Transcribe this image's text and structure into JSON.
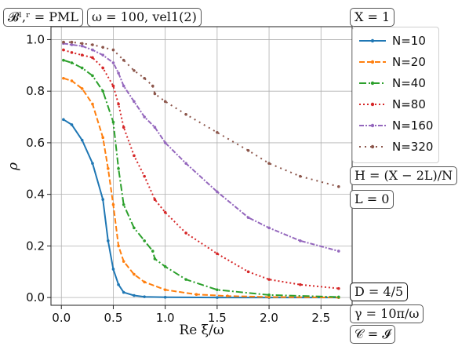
{
  "tags": {
    "boundary": "𝓑ˡ,ʳ = PML",
    "omega": "ω = 100, vel1(2)",
    "X": "X = 1",
    "H": "H = (X − 2L)/N",
    "L": "L = 0",
    "D": "D = 4/5",
    "gamma": "γ = 10π/ω",
    "C": "𝒞 = 𝓘"
  },
  "chart_data": {
    "type": "line",
    "xlabel": "Re ξ/ω",
    "ylabel": "ρ",
    "xlim": [
      -0.1,
      2.8
    ],
    "ylim": [
      -0.03,
      1.05
    ],
    "xticks": [
      "0.0",
      "0.5",
      "1.0",
      "1.5",
      "2.0",
      "2.5"
    ],
    "yticks": [
      "0.0",
      "0.2",
      "0.4",
      "0.6",
      "0.8",
      "1.0"
    ],
    "grid": true,
    "legend_position": "right",
    "series": [
      {
        "name": "N=10",
        "color": "#1f77b4",
        "dash": "",
        "x": [
          0.02,
          0.1,
          0.2,
          0.3,
          0.4,
          0.45,
          0.5,
          0.55,
          0.6,
          0.7,
          0.8,
          1.0,
          1.5,
          2.0,
          2.67
        ],
        "y": [
          0.69,
          0.67,
          0.61,
          0.52,
          0.38,
          0.22,
          0.11,
          0.05,
          0.02,
          0.008,
          0.003,
          0.001,
          0.0,
          0.0,
          0.0
        ]
      },
      {
        "name": "N=20",
        "color": "#ff7f0e",
        "dash": "7,3",
        "x": [
          0.02,
          0.1,
          0.2,
          0.3,
          0.4,
          0.45,
          0.5,
          0.55,
          0.6,
          0.7,
          0.8,
          1.0,
          1.3,
          1.6,
          2.0,
          2.67
        ],
        "y": [
          0.85,
          0.84,
          0.81,
          0.75,
          0.62,
          0.5,
          0.36,
          0.2,
          0.14,
          0.09,
          0.06,
          0.03,
          0.012,
          0.006,
          0.002,
          0.0
        ]
      },
      {
        "name": "N=40",
        "color": "#2ca02c",
        "dash": "9,3,2,3",
        "x": [
          0.02,
          0.1,
          0.2,
          0.3,
          0.4,
          0.5,
          0.55,
          0.6,
          0.7,
          0.8,
          0.88,
          0.9,
          1.0,
          1.2,
          1.5,
          2.0,
          2.67
        ],
        "y": [
          0.92,
          0.91,
          0.89,
          0.86,
          0.8,
          0.68,
          0.5,
          0.36,
          0.27,
          0.22,
          0.18,
          0.15,
          0.12,
          0.07,
          0.03,
          0.01,
          0.002
        ]
      },
      {
        "name": "N=80",
        "color": "#d62728",
        "dash": "2,3",
        "x": [
          0.02,
          0.1,
          0.2,
          0.3,
          0.4,
          0.5,
          0.55,
          0.6,
          0.7,
          0.8,
          0.9,
          1.0,
          1.2,
          1.5,
          1.8,
          2.0,
          2.3,
          2.67
        ],
        "y": [
          0.96,
          0.95,
          0.94,
          0.93,
          0.89,
          0.82,
          0.75,
          0.66,
          0.55,
          0.47,
          0.38,
          0.33,
          0.25,
          0.17,
          0.1,
          0.07,
          0.05,
          0.035
        ]
      },
      {
        "name": "N=160",
        "color": "#9467bd",
        "dash": "6,2,2,2",
        "x": [
          0.02,
          0.1,
          0.2,
          0.3,
          0.4,
          0.5,
          0.55,
          0.6,
          0.7,
          0.8,
          0.9,
          1.0,
          1.2,
          1.5,
          1.8,
          2.0,
          2.3,
          2.67
        ],
        "y": [
          0.985,
          0.98,
          0.975,
          0.96,
          0.94,
          0.91,
          0.87,
          0.82,
          0.76,
          0.7,
          0.66,
          0.6,
          0.52,
          0.41,
          0.31,
          0.27,
          0.22,
          0.18
        ]
      },
      {
        "name": "N=320",
        "color": "#8c564b",
        "dash": "2,5",
        "x": [
          0.02,
          0.1,
          0.2,
          0.3,
          0.4,
          0.5,
          0.6,
          0.7,
          0.8,
          0.88,
          0.9,
          1.0,
          1.2,
          1.5,
          1.8,
          2.0,
          2.3,
          2.67
        ],
        "y": [
          0.99,
          0.99,
          0.985,
          0.98,
          0.97,
          0.96,
          0.92,
          0.88,
          0.85,
          0.82,
          0.79,
          0.76,
          0.71,
          0.64,
          0.57,
          0.52,
          0.47,
          0.43
        ]
      }
    ]
  }
}
